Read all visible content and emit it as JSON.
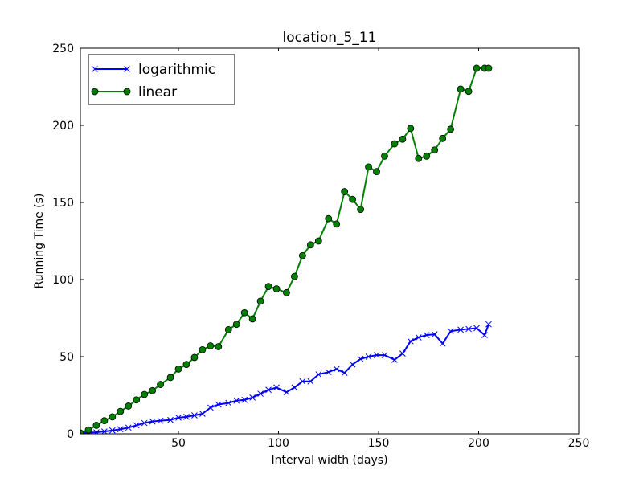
{
  "chart_data": {
    "type": "line",
    "title": "location_5_11",
    "xlabel": "Interval width (days)",
    "ylabel": "Running Time (s)",
    "xlim": [
      1,
      250
    ],
    "ylim": [
      0,
      250
    ],
    "xticks": [
      50,
      100,
      150,
      200,
      250
    ],
    "yticks": [
      0,
      50,
      100,
      150,
      200,
      250
    ],
    "grid": false,
    "legend_position": "top-left",
    "series": [
      {
        "name": "logarithmic",
        "color": "#0000ff",
        "marker": "x",
        "x": [
          1,
          5,
          9,
          13,
          17,
          21,
          25,
          29,
          33,
          37,
          41,
          46,
          50,
          54,
          58,
          62,
          66,
          70,
          75,
          79,
          83,
          87,
          91,
          95,
          99,
          104,
          108,
          112,
          116,
          120,
          125,
          129,
          133,
          137,
          141,
          145,
          149,
          153,
          158,
          162,
          166,
          170,
          174,
          178,
          182,
          186,
          191,
          195,
          199,
          203,
          205
        ],
        "y": [
          0.3,
          0.8,
          1.0,
          1.5,
          2.2,
          3.0,
          4.0,
          5.5,
          7.0,
          8.0,
          8.5,
          9.0,
          10.5,
          11.0,
          12.0,
          13.0,
          17.0,
          19.0,
          20.0,
          21.5,
          22.0,
          23.5,
          26.0,
          28.5,
          30.0,
          27.0,
          30.0,
          34.0,
          34.0,
          38.5,
          40.0,
          42.0,
          39.5,
          45.0,
          48.5,
          50.0,
          51.0,
          51.0,
          48.0,
          52.0,
          60.0,
          62.5,
          64.0,
          64.5,
          58.5,
          66.5,
          67.5,
          68.0,
          68.5,
          64.0,
          71.0
        ]
      },
      {
        "name": "linear",
        "color": "#008000",
        "marker": "o",
        "x": [
          1,
          5,
          9,
          13,
          17,
          21,
          25,
          29,
          33,
          37,
          41,
          46,
          50,
          54,
          58,
          62,
          66,
          70,
          75,
          79,
          83,
          87,
          91,
          95,
          99,
          104,
          108,
          112,
          116,
          120,
          125,
          129,
          133,
          137,
          141,
          145,
          149,
          153,
          158,
          162,
          166,
          170,
          174,
          178,
          182,
          186,
          191,
          195,
          199,
          203,
          205
        ],
        "y": [
          0.5,
          2.5,
          5.5,
          8.5,
          11.0,
          14.5,
          18.0,
          22.0,
          25.5,
          28.0,
          32.0,
          36.5,
          42.0,
          45.0,
          49.5,
          54.5,
          57.0,
          56.5,
          67.5,
          71.0,
          78.5,
          74.5,
          86.0,
          95.5,
          94.0,
          91.5,
          102.0,
          115.5,
          122.5,
          125.0,
          139.5,
          136.0,
          157.0,
          152.0,
          145.5,
          173.0,
          170.0,
          180.0,
          188.0,
          191.0,
          198.0,
          178.5,
          180.0,
          184.0,
          191.5,
          197.5,
          223.5,
          222.0,
          237.0,
          237.0,
          237.0
        ]
      }
    ]
  }
}
